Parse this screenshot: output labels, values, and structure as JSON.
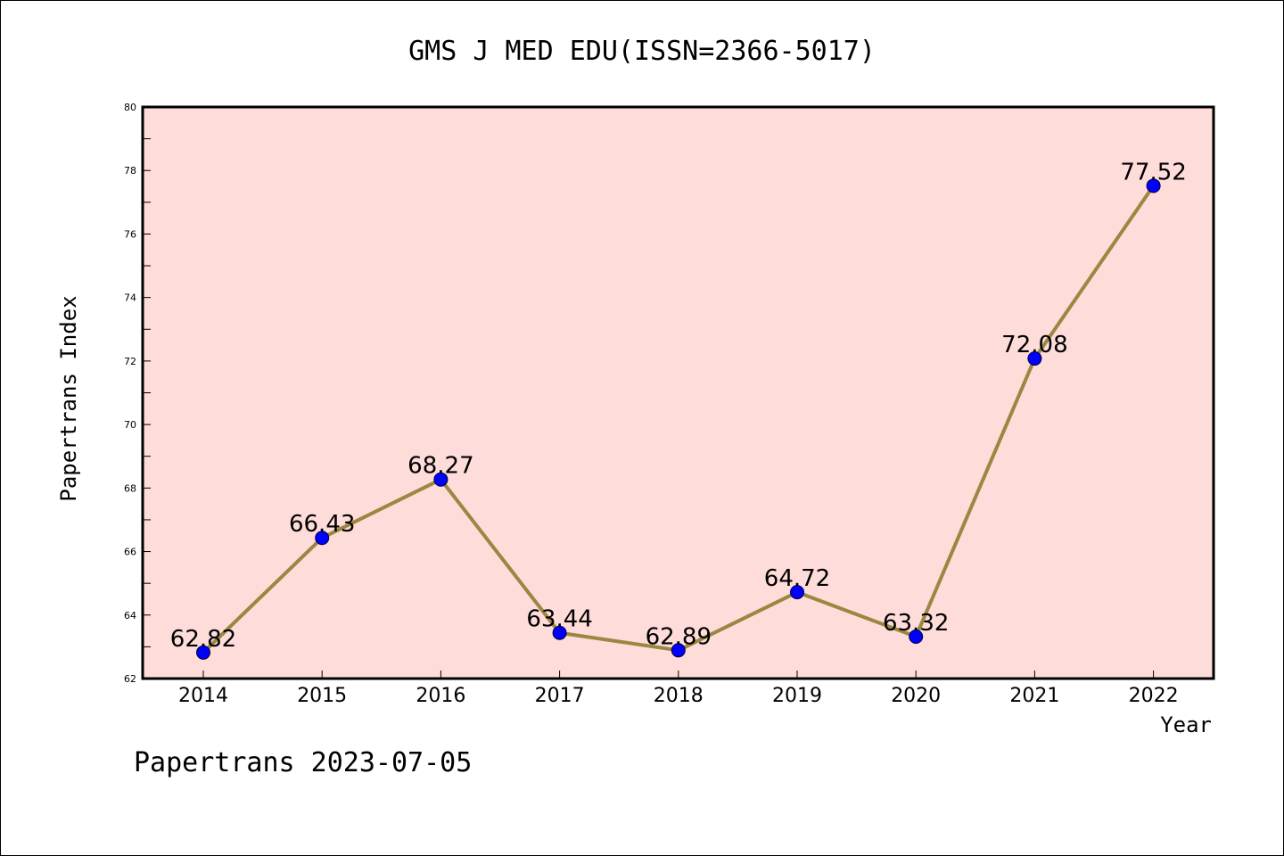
{
  "chart_data": {
    "type": "line",
    "title": "GMS J MED EDU(ISSN=2366-5017)",
    "xlabel": "Year",
    "ylabel": "Papertrans Index",
    "x": [
      "2014",
      "2015",
      "2016",
      "2017",
      "2018",
      "2019",
      "2020",
      "2021",
      "2022"
    ],
    "values": [
      62.82,
      66.43,
      68.27,
      63.44,
      62.89,
      64.72,
      63.32,
      72.08,
      77.52
    ],
    "data_labels": [
      "62.82",
      "66.43",
      "68.27",
      "63.44",
      "62.89",
      "64.72",
      "63.32",
      "72.08",
      "77.52"
    ],
    "ylim": [
      62,
      80
    ],
    "yticks": [
      "62",
      "64",
      "66",
      "68",
      "70",
      "72",
      "74",
      "76",
      "78",
      "80"
    ],
    "grid": false,
    "colors": {
      "plot_background": "#fddcda",
      "line": "#9a8740",
      "marker": "#0000ff"
    }
  },
  "footer": {
    "text": "Papertrans 2023-07-05"
  }
}
